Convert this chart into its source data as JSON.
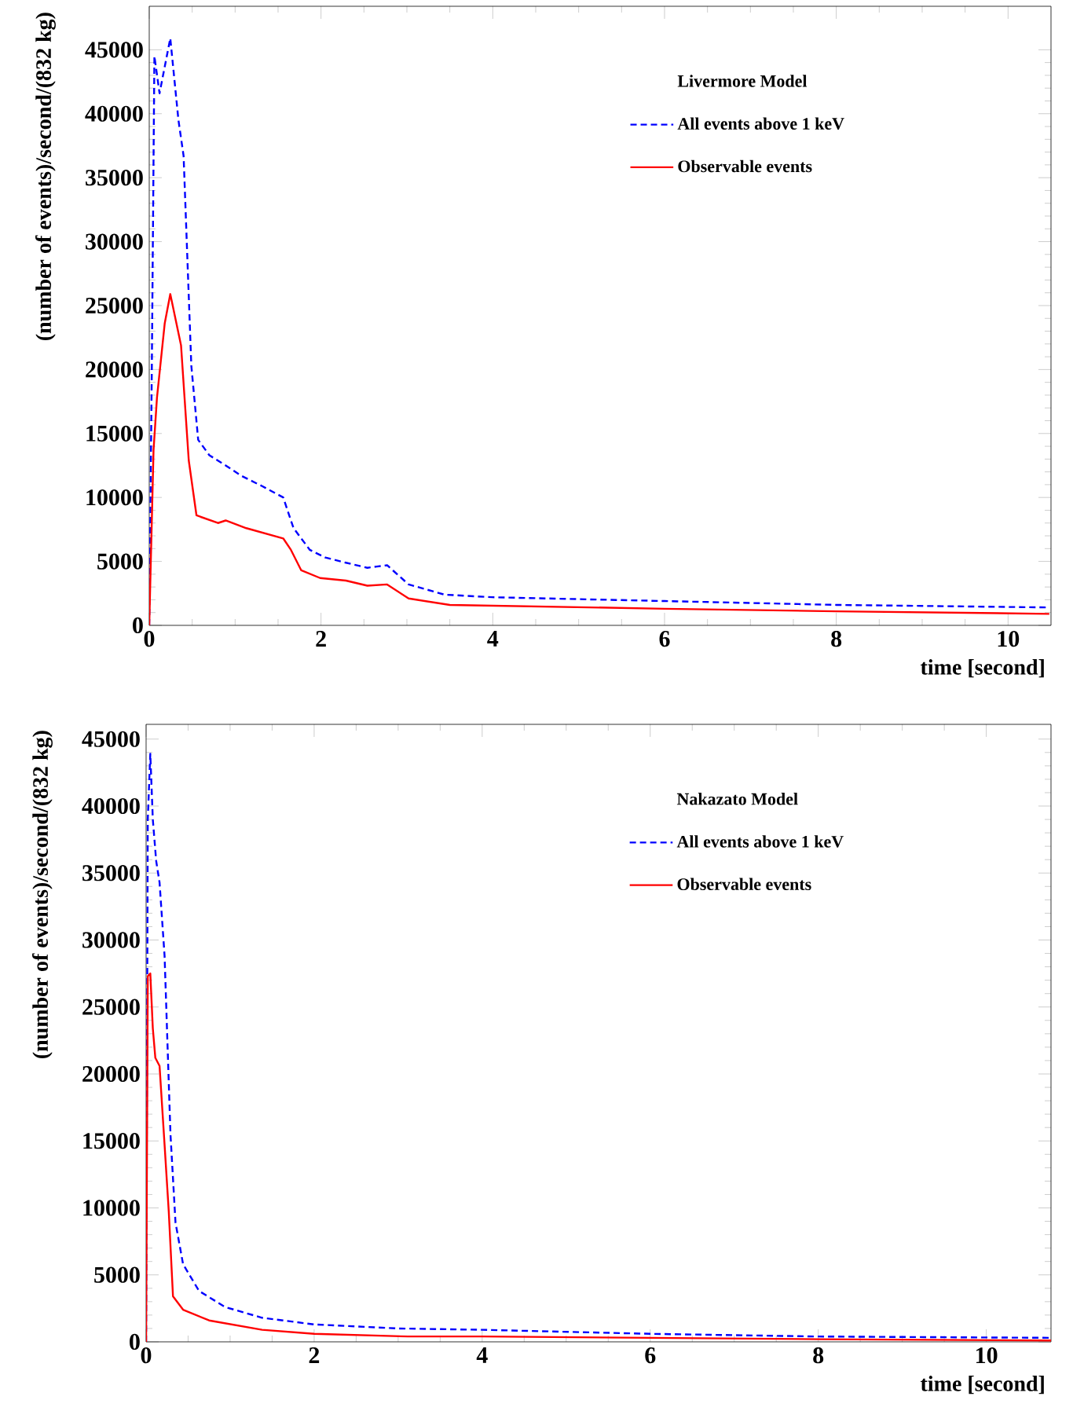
{
  "chart_data": [
    {
      "type": "line",
      "legend_title": "Livermore Model",
      "xlabel": "time [second]",
      "ylabel": "(number of events)/second/(832 kg)",
      "xlim": [
        0,
        10.5
      ],
      "ylim": [
        0,
        48400
      ],
      "xticks": [
        0,
        2,
        4,
        6,
        8,
        10
      ],
      "yticks": [
        0,
        5000,
        10000,
        15000,
        20000,
        25000,
        30000,
        35000,
        40000,
        45000
      ],
      "legend": "top right",
      "grid": false,
      "series": [
        {
          "name": "All events above 1 keV",
          "color": "#0000ff",
          "line_style": "dashed",
          "x": [
            0,
            0.03,
            0.06,
            0.12,
            0.245,
            0.34,
            0.4,
            0.49,
            0.57,
            0.7,
            0.89,
            1.07,
            1.31,
            1.56,
            1.68,
            1.87,
            2.05,
            2.29,
            2.54,
            2.65,
            2.77,
            3.02,
            3.44,
            3.99,
            6.0,
            8.0,
            10.48
          ],
          "values": [
            0,
            20000,
            44500,
            41600,
            45900,
            39500,
            36700,
            20300,
            14500,
            13300,
            12500,
            11700,
            10900,
            10000,
            7600,
            5900,
            5300,
            4900,
            4500,
            4600,
            4700,
            3200,
            2400,
            2200,
            1900,
            1600,
            1400
          ]
        },
        {
          "name": "Observable events",
          "color": "#ff0000",
          "line_style": "solid",
          "x": [
            0,
            0.05,
            0.09,
            0.18,
            0.245,
            0.37,
            0.46,
            0.55,
            0.8,
            0.89,
            1.13,
            1.56,
            1.65,
            1.77,
            1.99,
            2.29,
            2.54,
            2.77,
            3.02,
            3.5,
            6.0,
            8.0,
            10.48
          ],
          "values": [
            0,
            13700,
            17800,
            23600,
            25900,
            21900,
            12900,
            8600,
            8000,
            8200,
            7600,
            6800,
            5900,
            4300,
            3700,
            3500,
            3100,
            3200,
            2100,
            1600,
            1300,
            1100,
            900
          ]
        }
      ]
    },
    {
      "type": "line",
      "legend_title": "Nakazato Model",
      "xlabel": "time [second]",
      "ylabel": "(number of events)/second/(832 kg)",
      "xlim": [
        0,
        10.77
      ],
      "ylim": [
        0,
        46100
      ],
      "xticks": [
        0,
        2,
        4,
        6,
        8,
        10
      ],
      "yticks": [
        0,
        5000,
        10000,
        15000,
        20000,
        25000,
        30000,
        35000,
        40000,
        45000
      ],
      "legend": "top right",
      "grid": false,
      "series": [
        {
          "name": "All events above 1 keV",
          "color": "#0000ff",
          "line_style": "dashed",
          "x": [
            0,
            0.02,
            0.05,
            0.08,
            0.12,
            0.16,
            0.22,
            0.29,
            0.35,
            0.44,
            0.63,
            0.94,
            1.38,
            2.0,
            3.0,
            4.0,
            6.0,
            8.0,
            10.77
          ],
          "values": [
            0,
            39000,
            43900,
            39000,
            35900,
            34300,
            28800,
            15500,
            8900,
            5800,
            3800,
            2600,
            1800,
            1300,
            1000,
            900,
            600,
            400,
            300
          ]
        },
        {
          "name": "Observable events",
          "color": "#ff0000",
          "line_style": "solid",
          "x": [
            0,
            0.02,
            0.05,
            0.08,
            0.11,
            0.16,
            0.22,
            0.27,
            0.32,
            0.44,
            0.75,
            1.38,
            2.0,
            3.12,
            4.0,
            6.0,
            8.0,
            10.77
          ],
          "values": [
            0,
            27300,
            27500,
            23400,
            21200,
            20600,
            14700,
            9700,
            3400,
            2400,
            1600,
            900,
            600,
            400,
            400,
            300,
            200,
            100
          ]
        }
      ]
    }
  ]
}
